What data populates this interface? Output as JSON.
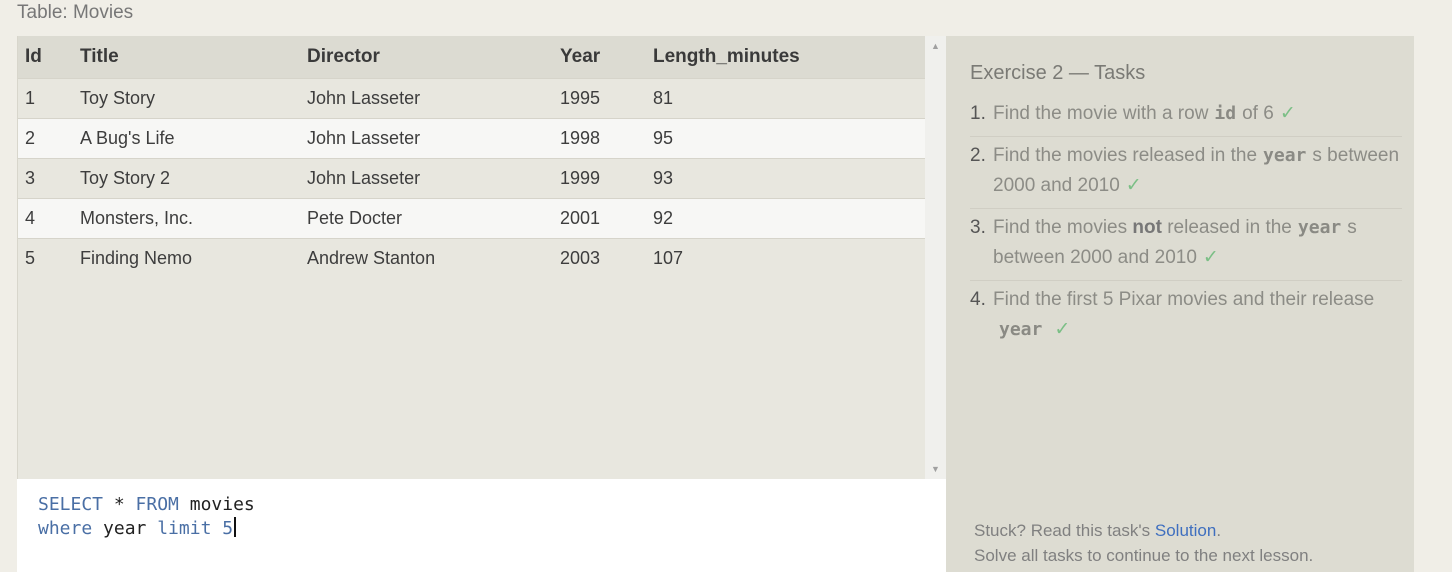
{
  "caption": "Table: Movies",
  "table": {
    "headers": [
      "Id",
      "Title",
      "Director",
      "Year",
      "Length_minutes"
    ],
    "rows": [
      [
        "1",
        "Toy Story",
        "John Lasseter",
        "1995",
        "81"
      ],
      [
        "2",
        "A Bug's Life",
        "John Lasseter",
        "1998",
        "95"
      ],
      [
        "3",
        "Toy Story 2",
        "John Lasseter",
        "1999",
        "93"
      ],
      [
        "4",
        "Monsters, Inc.",
        "Pete Docter",
        "2001",
        "92"
      ],
      [
        "5",
        "Finding Nemo",
        "Andrew Stanton",
        "2003",
        "107"
      ]
    ]
  },
  "scrollbar": {
    "up_icon": "▲",
    "down_icon": "▼"
  },
  "editor": {
    "line1": {
      "kw1": "SELECT",
      "star": " * ",
      "kw2": "FROM",
      "table": " movies"
    },
    "line2": {
      "kw1": "where",
      "col": " year ",
      "kw2": "limit",
      "num": " 5"
    }
  },
  "tasks": {
    "title": "Exercise 2 — Tasks",
    "check": "✓",
    "items": [
      {
        "num": "1.",
        "pre": "Find the movie with a row",
        "code": "id",
        "post": "of 6"
      },
      {
        "num": "2.",
        "pre": "Find the movies released in the",
        "code": "year",
        "post": "s between 2000 and 2010"
      },
      {
        "num": "3.",
        "pre": "Find the movies",
        "strong": "not",
        "mid": "released in the",
        "code": "year",
        "post": "s between 2000 and 2010"
      },
      {
        "num": "4.",
        "pre": "Find the first 5 Pixar movies and their release",
        "code": "year",
        "post": ""
      }
    ]
  },
  "footer": {
    "stuck_pre": "Stuck? Read this task's ",
    "solution_link": "Solution",
    "stuck_post": ".",
    "line2": "Solve all tasks to continue to the next lesson."
  }
}
